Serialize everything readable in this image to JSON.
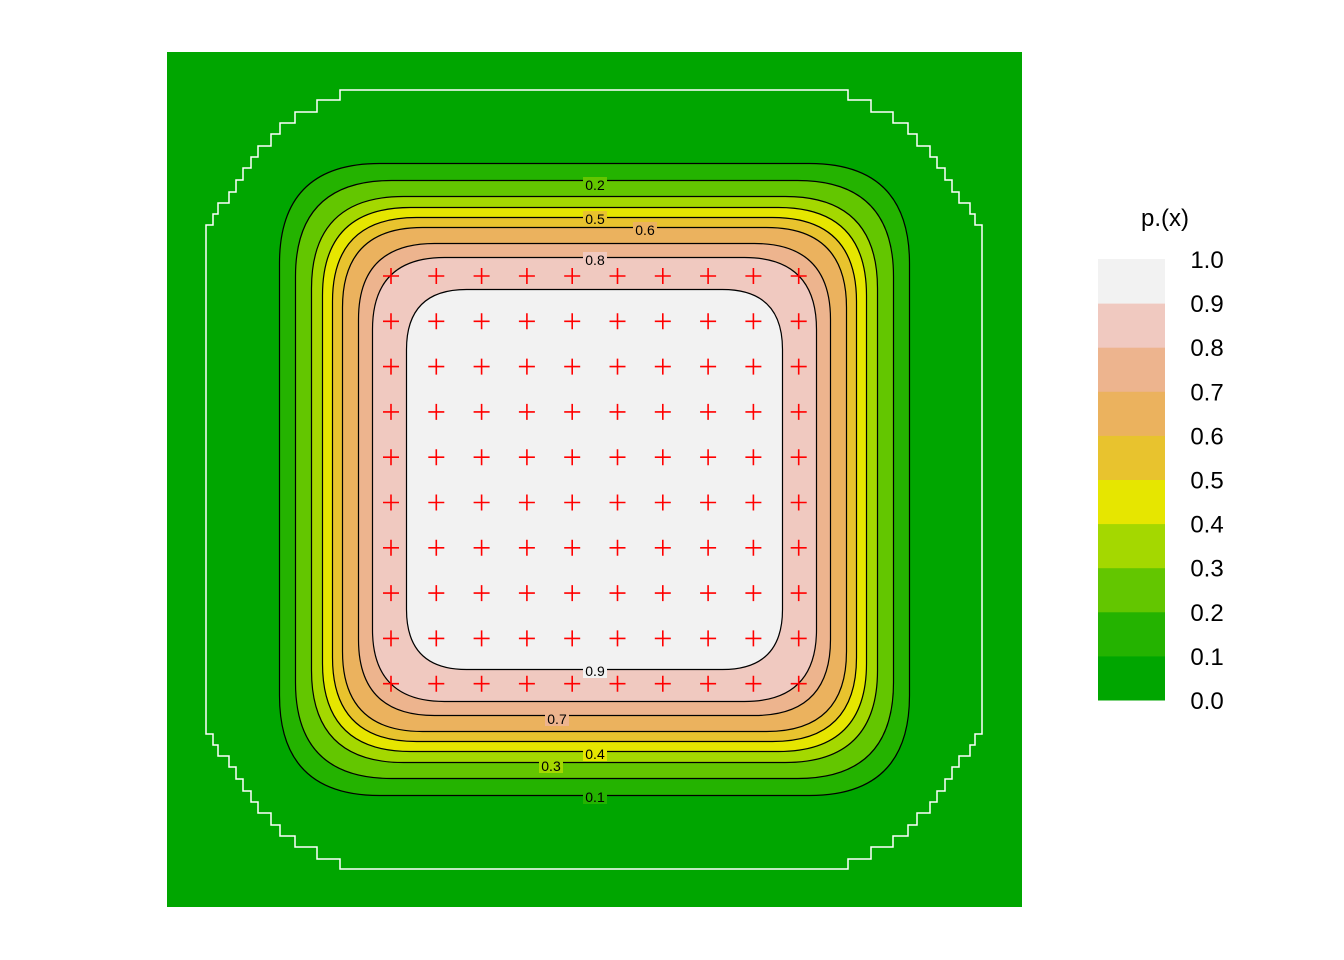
{
  "chart_data": {
    "type": "heatmap",
    "subtype": "filled-contour",
    "title": "",
    "xlabel": "",
    "ylabel": "",
    "axes_visible": false,
    "grid": false,
    "legend": {
      "title": "p.(x)",
      "placement": "right",
      "breaks": [
        "0.0",
        "0.1",
        "0.2",
        "0.3",
        "0.4",
        "0.5",
        "0.6",
        "0.7",
        "0.8",
        "0.9",
        "1.0"
      ],
      "colors": [
        "#00a600",
        "#24b300",
        "#63c600",
        "#a4d800",
        "#e6e600",
        "#e8c32e",
        "#ebb25e",
        "#edb48e",
        "#f0c9c0",
        "#f2f2f2"
      ]
    },
    "contour_levels": [
      0.1,
      0.2,
      0.3,
      0.4,
      0.5,
      0.6,
      0.7,
      0.8,
      0.9
    ],
    "contour_labels": [
      {
        "text": "0.2"
      },
      {
        "text": "0.5"
      },
      {
        "text": "0.6"
      },
      {
        "text": "0.8"
      },
      {
        "text": "0.9"
      },
      {
        "text": "0.7"
      },
      {
        "text": "0.4"
      },
      {
        "text": "0.3"
      },
      {
        "text": "0.1"
      }
    ],
    "design_points": {
      "marker": "+",
      "color": "#ff0000",
      "grid_size": [
        10,
        10
      ]
    },
    "boundary_outline": {
      "color": "#ffffff",
      "shape": "stepped octagon"
    }
  }
}
